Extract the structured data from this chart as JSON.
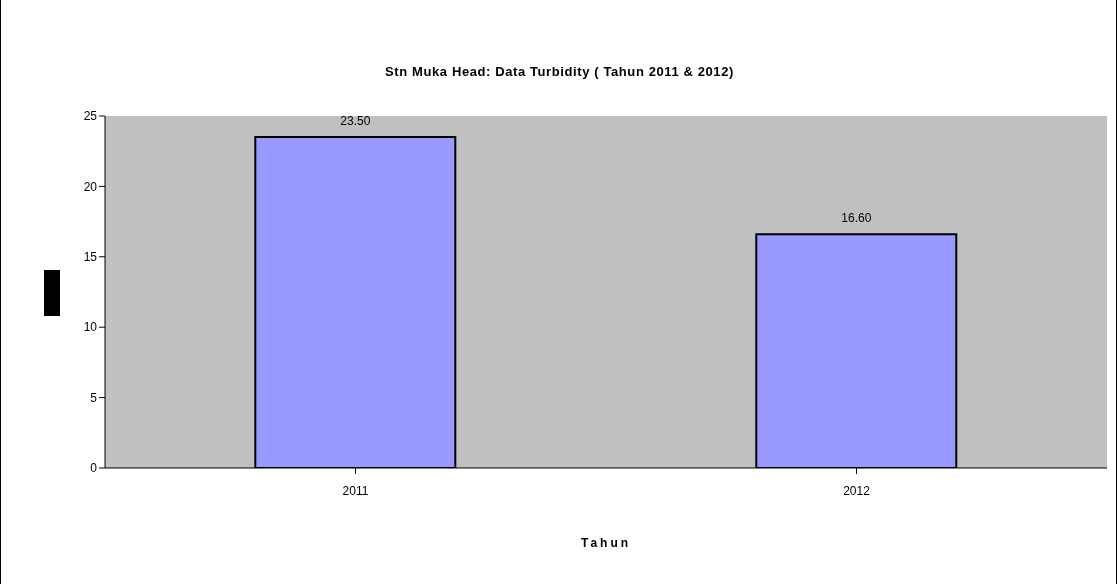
{
  "chart_data": {
    "type": "bar",
    "title": "Stn Muka Head: Data Turbidity ( Tahun 2011 & 2012)",
    "xlabel": "Tahun",
    "categories": [
      "2011",
      "2012"
    ],
    "values": [
      23.5,
      16.6
    ],
    "value_labels": [
      "23.50",
      "16.60"
    ],
    "color": "#9999ff",
    "ylim": [
      0,
      25
    ],
    "yticks": [
      0,
      5,
      10,
      15,
      20,
      25
    ],
    "grid": false
  }
}
